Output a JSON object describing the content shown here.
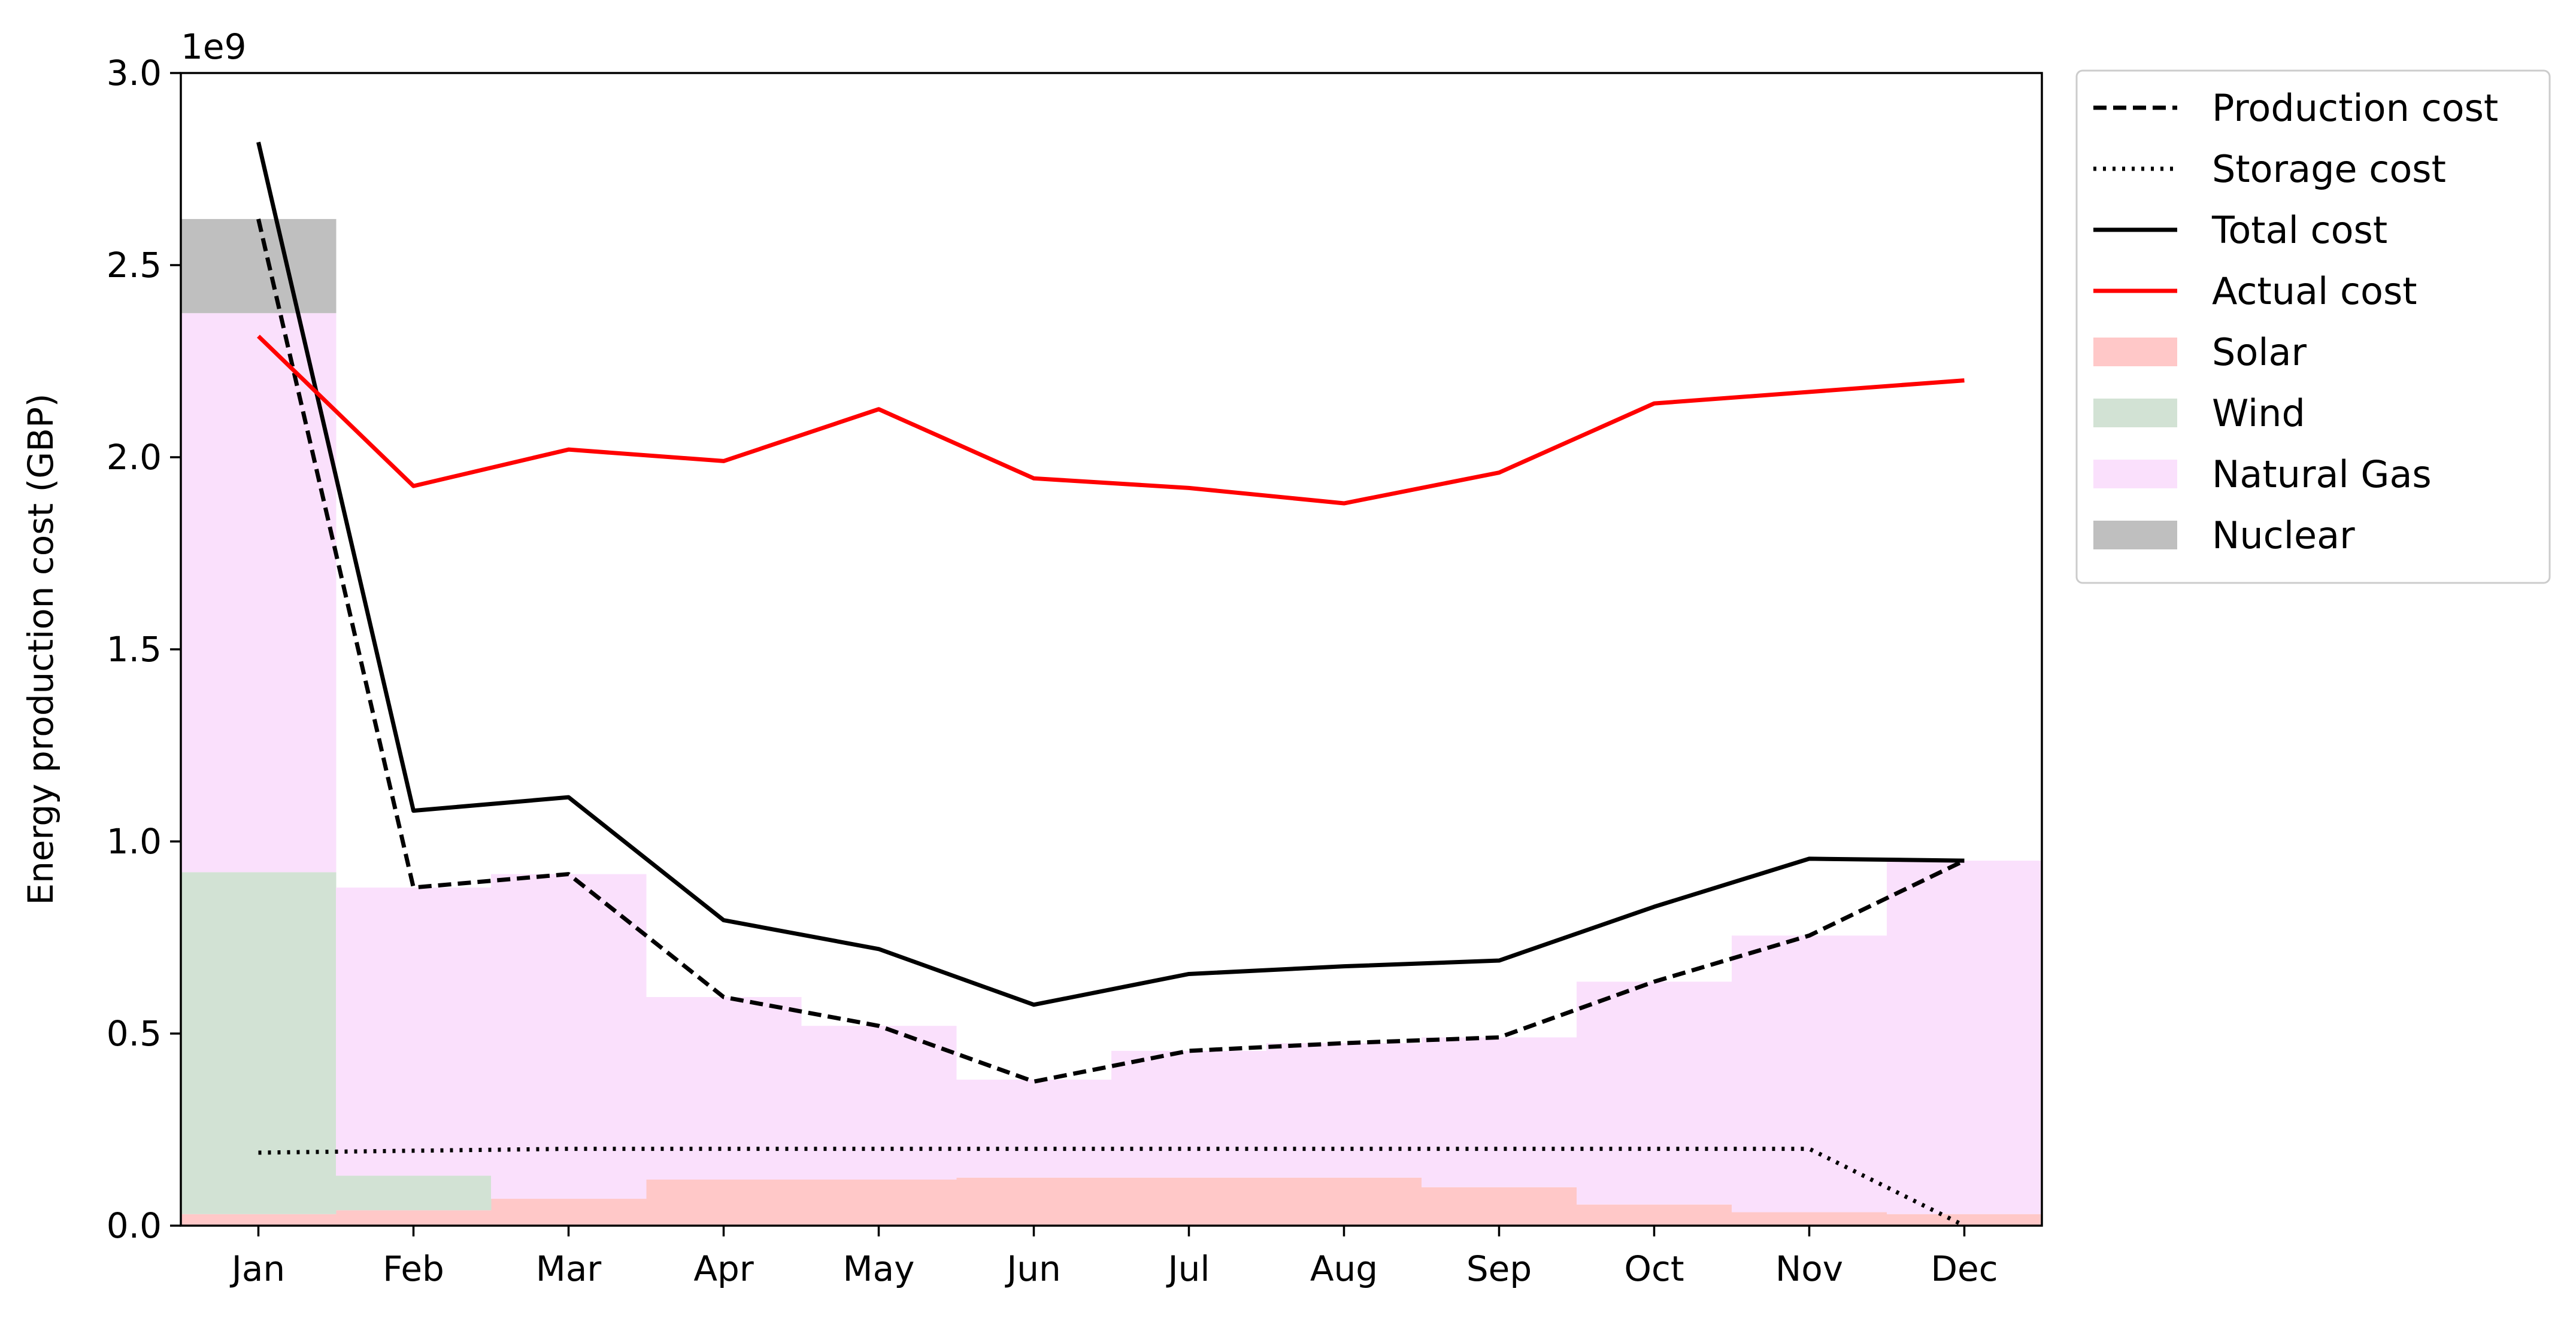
{
  "chart_data": {
    "type": "area",
    "ylabel": "Energy production cost (GBP)",
    "xlabel": "",
    "scale_label": "1e9",
    "scale": 1000000000,
    "ylim": [
      0,
      3000000000
    ],
    "yticks": [
      0,
      500000000,
      1000000000,
      1500000000,
      2000000000,
      2500000000,
      3000000000
    ],
    "ytick_labels": [
      "0.0",
      "0.5",
      "1.0",
      "1.5",
      "2.0",
      "2.5",
      "3.0"
    ],
    "categories": [
      "Jan",
      "Feb",
      "Mar",
      "Apr",
      "May",
      "Jun",
      "Jul",
      "Aug",
      "Sep",
      "Oct",
      "Nov",
      "Dec"
    ],
    "grid": false,
    "legend_position": "outside top-right",
    "stacked_areas": [
      {
        "name": "Solar",
        "color": "#ffc8c8",
        "values": [
          30000000,
          40000000,
          70000000,
          120000000,
          120000000,
          125000000,
          125000000,
          125000000,
          100000000,
          55000000,
          35000000,
          30000000
        ]
      },
      {
        "name": "Wind",
        "color": "#d2e2d4",
        "values": [
          890000000,
          90000000,
          0,
          0,
          0,
          0,
          0,
          0,
          0,
          0,
          0,
          0
        ]
      },
      {
        "name": "Natural Gas",
        "color": "#fae0fc",
        "values": [
          1455000000,
          750000000,
          845000000,
          475000000,
          400000000,
          255000000,
          330000000,
          350000000,
          390000000,
          580000000,
          720000000,
          920000000
        ]
      },
      {
        "name": "Nuclear",
        "color": "#bfbfbf",
        "values": [
          245000000,
          0,
          0,
          0,
          0,
          0,
          0,
          0,
          0,
          0,
          0,
          0
        ]
      }
    ],
    "series": [
      {
        "name": "Production cost",
        "style": "dashed",
        "color": "#000000",
        "values": [
          2620000000,
          880000000,
          915000000,
          595000000,
          520000000,
          375000000,
          455000000,
          475000000,
          490000000,
          635000000,
          755000000,
          950000000
        ]
      },
      {
        "name": "Storage cost",
        "style": "dotted",
        "color": "#000000",
        "values": [
          190000000,
          195000000,
          200000000,
          200000000,
          200000000,
          200000000,
          200000000,
          200000000,
          200000000,
          200000000,
          200000000,
          0
        ]
      },
      {
        "name": "Total cost",
        "style": "solid",
        "color": "#000000",
        "values": [
          2820000000,
          1080000000,
          1115000000,
          795000000,
          720000000,
          575000000,
          655000000,
          675000000,
          690000000,
          830000000,
          955000000,
          950000000
        ]
      },
      {
        "name": "Actual cost",
        "style": "solid",
        "color": "#ff0000",
        "values": [
          2315000000,
          1925000000,
          2020000000,
          1990000000,
          2125000000,
          1945000000,
          1920000000,
          1880000000,
          1960000000,
          2140000000,
          2170000000,
          2200000000
        ]
      }
    ],
    "legend": [
      "Production cost",
      "Storage cost",
      "Total cost",
      "Actual cost",
      "Solar",
      "Wind",
      "Natural Gas",
      "Nuclear"
    ]
  }
}
